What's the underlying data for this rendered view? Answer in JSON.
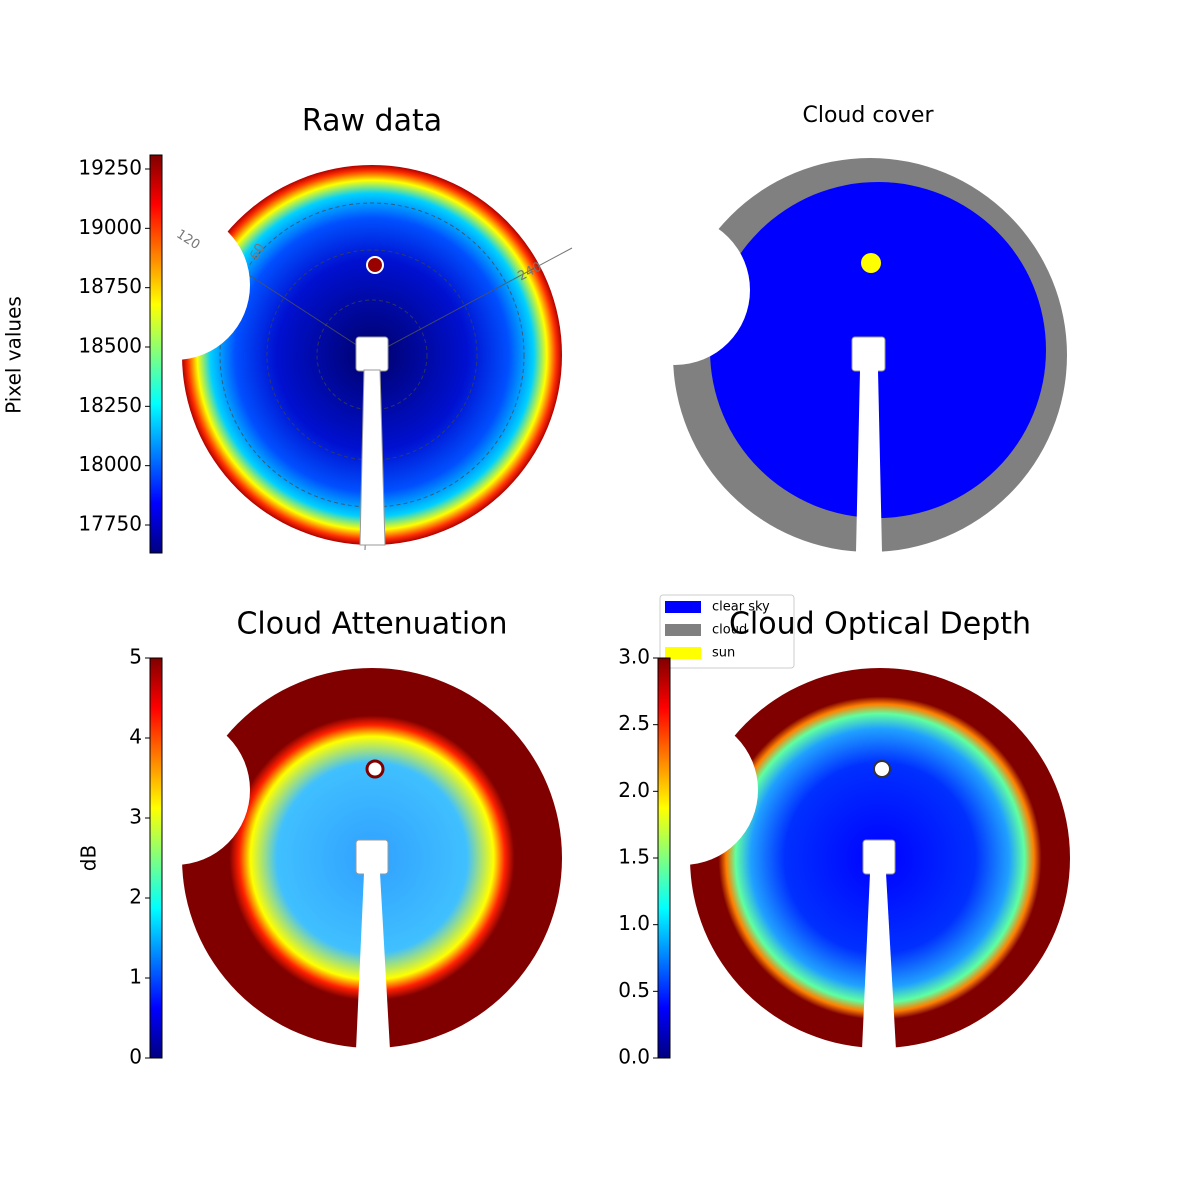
{
  "chart_data": [
    {
      "type": "heatmap",
      "title": "Raw data",
      "colorbar": {
        "label": "Pixel values",
        "lim": [
          17632,
          19309
        ],
        "ticks": [
          17750,
          18000,
          18250,
          18500,
          18750,
          19000,
          19250
        ]
      },
      "annotations": [
        "120",
        "60",
        "240"
      ]
    },
    {
      "type": "categorical",
      "title": "Cloud cover",
      "legend": {
        "categories": [
          "clear sky",
          "cloud",
          "sun"
        ],
        "colors": [
          "#0000ff",
          "#808080",
          "#ffff00"
        ]
      }
    },
    {
      "type": "heatmap",
      "title": "Cloud Attenuation",
      "colorbar": {
        "label": "dB",
        "lim": [
          0,
          5
        ],
        "ticks": [
          0,
          1,
          2,
          3,
          4,
          5
        ]
      }
    },
    {
      "type": "heatmap",
      "title": "Cloud Optical Depth",
      "colorbar": {
        "lim": [
          0,
          3
        ],
        "ticks": [
          {
            "value": 0,
            "label": "0.0"
          },
          0.5,
          {
            "value": 1,
            "label": "1.0"
          },
          1.5,
          {
            "value": 2,
            "label": "2.0"
          },
          2.5,
          {
            "value": 3,
            "label": "3.0"
          }
        ]
      }
    }
  ]
}
